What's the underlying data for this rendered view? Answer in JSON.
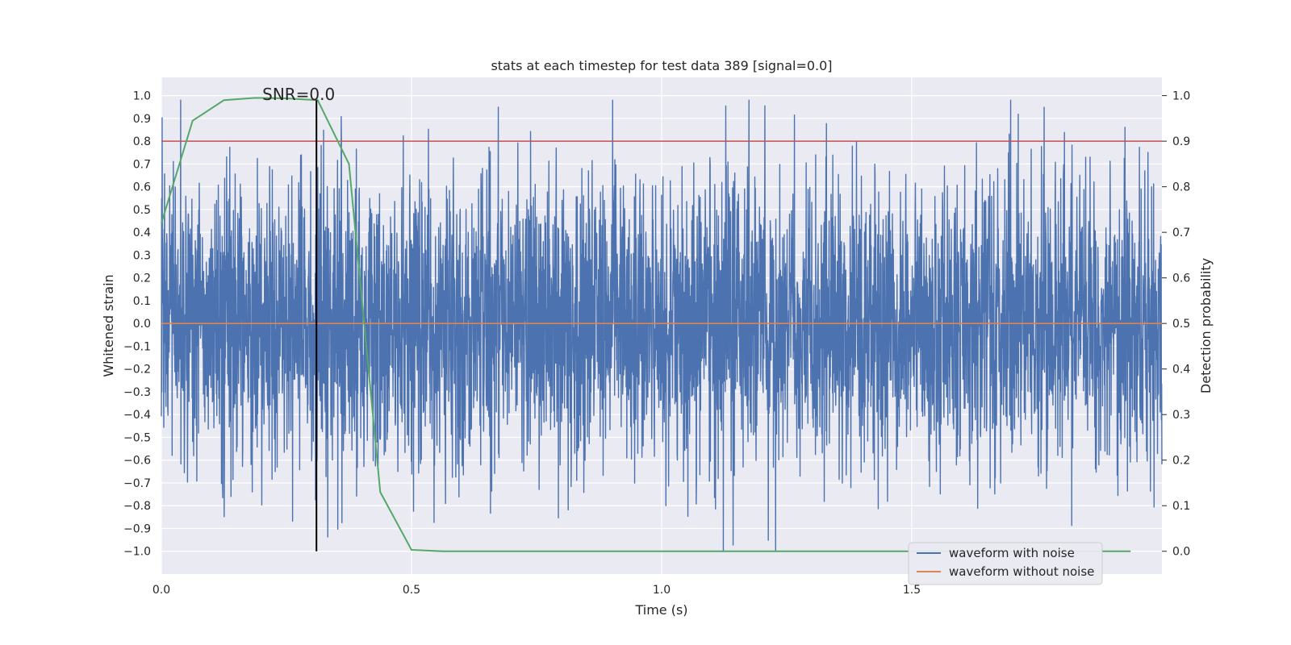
{
  "chart_data": {
    "type": "line",
    "title": "stats at each timestep for test data 389 [signal=0.0]",
    "xlabel": "Time (s)",
    "ylabel_left": "Whitened strain",
    "ylabel_right": "Detection probability",
    "xlim": [
      0.0,
      2.0
    ],
    "ylim_left": [
      -1.1,
      1.08
    ],
    "ylim_right": [
      -0.05,
      1.04
    ],
    "x_ticks": [
      "0.0",
      "0.5",
      "1.0",
      "1.5"
    ],
    "x_tick_values": [
      0.0,
      0.5,
      1.0,
      1.5
    ],
    "y_ticks_left": [
      "1.0",
      "0.9",
      "0.8",
      "0.7",
      "0.6",
      "0.5",
      "0.4",
      "0.3",
      "0.2",
      "0.1",
      "0.0",
      "−0.1",
      "−0.2",
      "−0.3",
      "−0.4",
      "−0.5",
      "−0.6",
      "−0.7",
      "−0.8",
      "−0.9",
      "−1.0"
    ],
    "y_tick_values_left": [
      1.0,
      0.9,
      0.8,
      0.7,
      0.6,
      0.5,
      0.4,
      0.3,
      0.2,
      0.1,
      0.0,
      -0.1,
      -0.2,
      -0.3,
      -0.4,
      -0.5,
      -0.6,
      -0.7,
      -0.8,
      -0.9,
      -1.0
    ],
    "y_ticks_right": [
      "1.0",
      "0.9",
      "0.8",
      "0.7",
      "0.6",
      "0.5",
      "0.4",
      "0.3",
      "0.2",
      "0.1",
      "0.0"
    ],
    "y_tick_values_right": [
      1.0,
      0.9,
      0.8,
      0.7,
      0.6,
      0.5,
      0.4,
      0.3,
      0.2,
      0.1,
      0.0
    ],
    "grid": true,
    "annotation": {
      "text": "SNR=0.0",
      "x": 0.31
    },
    "marker_line": {
      "x": 0.31,
      "y_from": -1.0,
      "y_to": 0.98
    },
    "threshold_line": {
      "axis": "right",
      "value": 0.9,
      "color": "#c44e52"
    },
    "series": [
      {
        "name": "waveform with noise",
        "axis": "left",
        "color": "#4c72b0",
        "description": "dense noisy whitened strain, 4096 samples, amplitude mostly within ±0.6, peaks near ±1.0",
        "noise": {
          "samples": 4096,
          "std": 0.32,
          "clip": [
            -1.0,
            0.98
          ],
          "seed": 389
        }
      },
      {
        "name": "waveform without noise",
        "axis": "left",
        "color": "#dd8452",
        "x": [
          0.0,
          2.0
        ],
        "y": [
          0.0,
          0.0
        ]
      },
      {
        "name": "detection probability",
        "axis": "right",
        "color": "#55a868",
        "x": [
          0.0,
          0.0625,
          0.125,
          0.1875,
          0.25,
          0.3125,
          0.375,
          0.4375,
          0.5,
          0.5625,
          0.625,
          0.6875,
          0.75,
          0.8125,
          0.875,
          0.9375,
          1.0,
          1.0625,
          1.125,
          1.1875,
          1.25,
          1.3125,
          1.375,
          1.4375,
          1.5,
          1.5625,
          1.625,
          1.6875,
          1.75,
          1.8125,
          1.875,
          1.9375
        ],
        "y": [
          0.72,
          0.945,
          0.99,
          0.995,
          0.994,
          0.99,
          0.85,
          0.13,
          0.003,
          0.0,
          0.0,
          0.0,
          0.0,
          0.0,
          0.0,
          0.0,
          0.0,
          0.0,
          0.0,
          0.0,
          0.0,
          0.0,
          0.0,
          0.0,
          0.0,
          0.0,
          0.0,
          0.0,
          0.0,
          0.0,
          0.0,
          0.0
        ]
      }
    ],
    "legend": {
      "location": "lower-right",
      "entries": [
        {
          "label": "waveform with noise",
          "color": "#4c72b0"
        },
        {
          "label": "waveform without noise",
          "color": "#dd8452"
        }
      ]
    }
  }
}
